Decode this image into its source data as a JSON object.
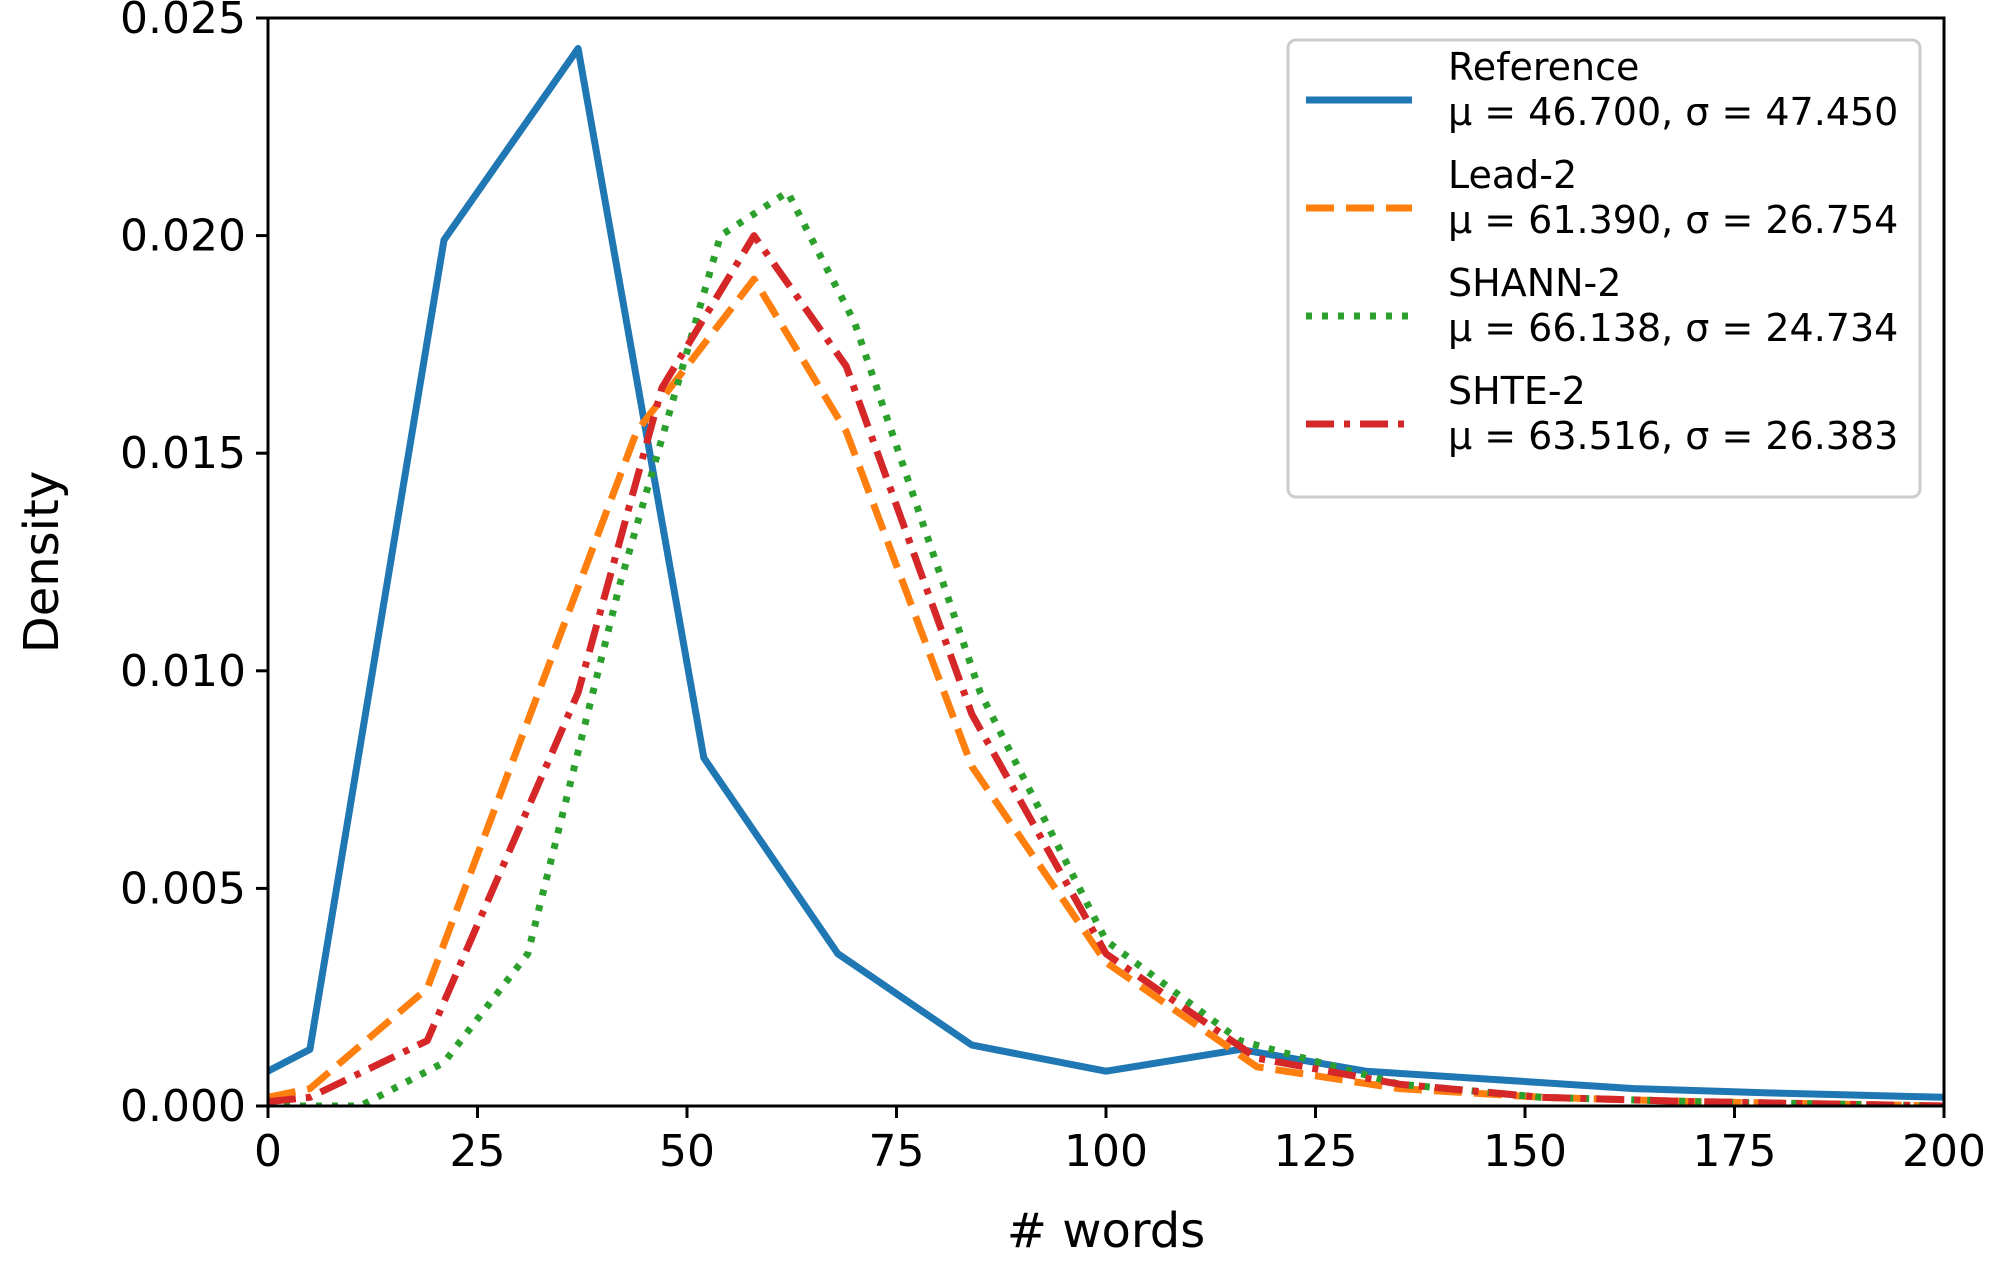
{
  "chart_data": {
    "type": "line",
    "title": "",
    "xlabel": "# words",
    "ylabel": "Density",
    "xlim": [
      0,
      200
    ],
    "ylim": [
      0,
      0.025
    ],
    "xticks": [
      0,
      25,
      50,
      75,
      100,
      125,
      150,
      175,
      200
    ],
    "xtick_labels": [
      "0",
      "25",
      "50",
      "75",
      "100",
      "125",
      "150",
      "175",
      "200"
    ],
    "yticks": [
      0.0,
      0.005,
      0.01,
      0.015,
      0.02,
      0.025
    ],
    "ytick_labels": [
      "0.000",
      "0.005",
      "0.010",
      "0.015",
      "0.020",
      "0.025"
    ],
    "grid": false,
    "legend_position": "top-right",
    "series": [
      {
        "name": "Reference",
        "stats": "μ = 46.700, σ = 47.450",
        "color": "#1f77b4",
        "style": "solid",
        "x": [
          0,
          5,
          21,
          37,
          52,
          68,
          84,
          100,
          116,
          131,
          147,
          163,
          179,
          200
        ],
        "y": [
          0.0008,
          0.0013,
          0.0199,
          0.0243,
          0.008,
          0.0035,
          0.0014,
          0.0008,
          0.0013,
          0.0008,
          0.0006,
          0.0004,
          0.0003,
          0.0002
        ]
      },
      {
        "name": "Lead-2",
        "stats": "μ = 61.390, σ = 26.754",
        "color": "#ff7f0e",
        "style": "dashed",
        "x": [
          0,
          5,
          19,
          44,
          58,
          69,
          84,
          100,
          118,
          135,
          152,
          170,
          200
        ],
        "y": [
          0.0002,
          0.0004,
          0.0027,
          0.0155,
          0.019,
          0.0155,
          0.0078,
          0.0033,
          0.0009,
          0.0004,
          0.0002,
          0.0001,
          0.0
        ]
      },
      {
        "name": "SHANN-2",
        "stats": "μ = 66.138, σ = 24.734",
        "color": "#2ca02c",
        "style": "dotted",
        "x": [
          0,
          11,
          21,
          31,
          42,
          54,
          62,
          70,
          85,
          100,
          116,
          135,
          152,
          170,
          200
        ],
        "y": [
          0.0,
          0.0,
          0.001,
          0.0035,
          0.012,
          0.02,
          0.021,
          0.018,
          0.0095,
          0.0038,
          0.0015,
          0.0005,
          0.0002,
          0.0001,
          0.0
        ]
      },
      {
        "name": "SHTE-2",
        "stats": "μ = 63.516, σ = 26.383",
        "color": "#d62728",
        "style": "dashdot",
        "x": [
          0,
          5,
          19,
          37,
          47,
          58,
          69,
          84,
          100,
          118,
          135,
          152,
          170,
          200
        ],
        "y": [
          0.0001,
          0.0002,
          0.0015,
          0.0095,
          0.0165,
          0.02,
          0.017,
          0.009,
          0.0035,
          0.0011,
          0.0005,
          0.0002,
          0.0001,
          0.0
        ]
      }
    ]
  }
}
